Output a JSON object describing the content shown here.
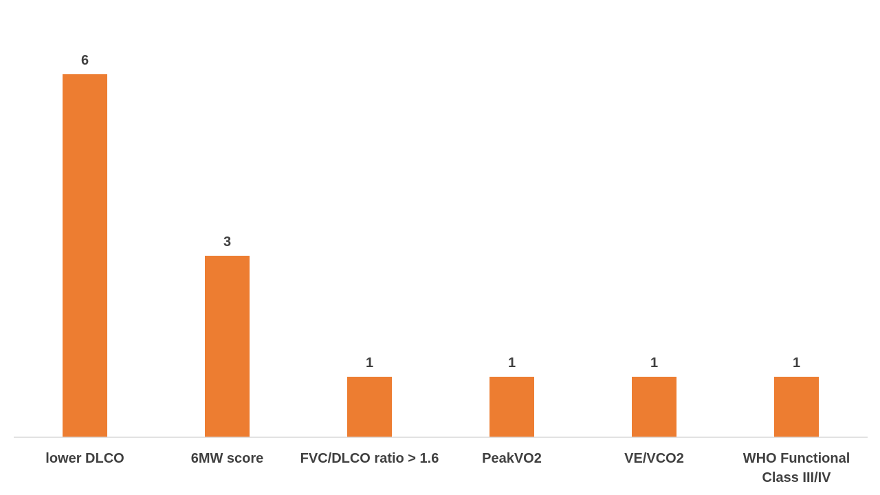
{
  "chart_data": {
    "type": "bar",
    "categories": [
      "lower DLCO",
      "6MW score",
      "FVC/DLCO ratio > 1.6",
      "PeakVO2",
      "VE/VCO2",
      "WHO Functional Class III/IV"
    ],
    "values": [
      6,
      3,
      1,
      1,
      1,
      1
    ],
    "data_labels": [
      "6",
      "3",
      "1",
      "1",
      "1",
      "1"
    ],
    "ylim": [
      0,
      6
    ],
    "grid": false,
    "legend": "none"
  },
  "colors": {
    "bar": "#ED7D31",
    "axis": "#D9D9D9",
    "text": "#404040"
  }
}
